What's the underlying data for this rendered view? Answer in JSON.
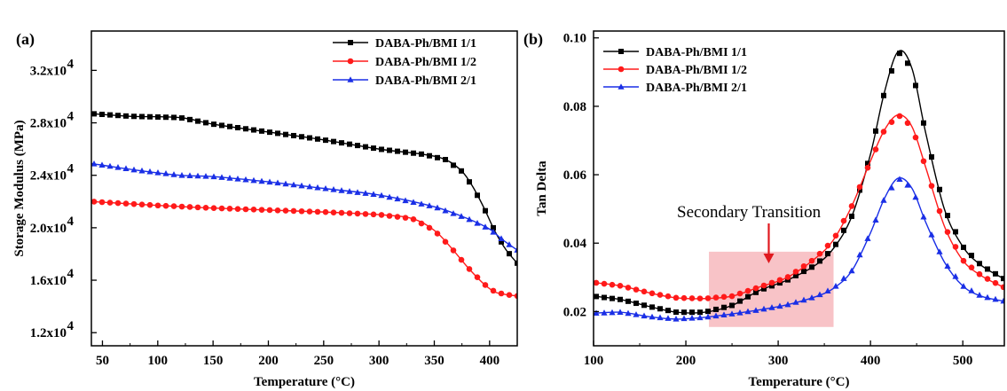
{
  "colors": {
    "series_1_1": "#000000",
    "series_1_2": "#ff1a1a",
    "series_2_1": "#1a2fe6",
    "highlight": "#f7b9bd",
    "arrow": "#e0191f"
  },
  "chart_data": [
    {
      "type": "line",
      "panel_label": "(a)",
      "xlabel": "Temperature (°C)",
      "ylabel": "Storage Modulus (MPa)",
      "xlim": [
        40,
        425
      ],
      "ylim": [
        11000,
        35000
      ],
      "x_ticks": [
        50,
        100,
        150,
        200,
        250,
        300,
        350,
        400
      ],
      "y_ticks": [
        12000,
        16000,
        20000,
        24000,
        28000,
        32000
      ],
      "y_tick_labels": [
        {
          "base": "1.2x10",
          "exp": "4"
        },
        {
          "base": "1.6x10",
          "exp": "4"
        },
        {
          "base": "2.0x10",
          "exp": "4"
        },
        {
          "base": "2.4x10",
          "exp": "4"
        },
        {
          "base": "2.8x10",
          "exp": "4"
        },
        {
          "base": "3.2x10",
          "exp": "4"
        }
      ],
      "legend_position": "top-right",
      "series": [
        {
          "name": "DABA-Ph/BMI 1/1",
          "marker": "square",
          "color_key": "series_1_1",
          "x": [
            40,
            75,
            120,
            150,
            200,
            250,
            300,
            340,
            360,
            375,
            385,
            395,
            405,
            415,
            425
          ],
          "y": [
            28700,
            28500,
            28400,
            27900,
            27300,
            26700,
            26000,
            25600,
            25200,
            24300,
            23100,
            21500,
            19700,
            18300,
            17300
          ]
        },
        {
          "name": "DABA-Ph/BMI 1/2",
          "marker": "circle",
          "color_key": "series_1_2",
          "x": [
            40,
            100,
            150,
            200,
            250,
            300,
            330,
            350,
            365,
            380,
            395,
            405,
            415,
            425
          ],
          "y": [
            22000,
            21700,
            21500,
            21350,
            21200,
            21000,
            20700,
            19800,
            18500,
            17000,
            15700,
            15100,
            14900,
            14800
          ]
        },
        {
          "name": "DABA-Ph/BMI 2/1",
          "marker": "triangle",
          "color_key": "series_2_1",
          "x": [
            40,
            80,
            120,
            150,
            200,
            250,
            300,
            350,
            380,
            400,
            410,
            418,
            425
          ],
          "y": [
            24900,
            24400,
            24000,
            23900,
            23500,
            23000,
            22500,
            21600,
            20700,
            19900,
            19200,
            18700,
            18300
          ]
        }
      ]
    },
    {
      "type": "line",
      "panel_label": "(b)",
      "xlabel": "Temperature (°C)",
      "ylabel": "Tan Delta",
      "xlim": [
        100,
        545
      ],
      "ylim": [
        0.01,
        0.102
      ],
      "x_ticks": [
        100,
        200,
        300,
        400,
        500
      ],
      "y_ticks": [
        0.02,
        0.04,
        0.06,
        0.08,
        0.1
      ],
      "y_tick_labels": [
        "0.02",
        "0.04",
        "0.06",
        "0.08",
        "0.10"
      ],
      "legend_position": "top-left",
      "annotation": {
        "text": "Secondary Transition",
        "arrow_to": [
          285,
          0.029
        ],
        "region_x": [
          225,
          360
        ],
        "region_y": [
          0.0155,
          0.0375
        ]
      },
      "series": [
        {
          "name": "DABA-Ph/BMI 1/1",
          "marker": "square",
          "color_key": "series_1_1",
          "x": [
            100,
            130,
            160,
            190,
            220,
            250,
            280,
            310,
            340,
            360,
            380,
            400,
            415,
            430,
            445,
            460,
            480,
            500,
            520,
            545
          ],
          "y": [
            0.0245,
            0.0235,
            0.0215,
            0.0198,
            0.0198,
            0.0218,
            0.0262,
            0.0292,
            0.0335,
            0.0385,
            0.048,
            0.066,
            0.084,
            0.096,
            0.091,
            0.072,
            0.05,
            0.039,
            0.0335,
            0.0295
          ]
        },
        {
          "name": "DABA-Ph/BMI 1/2",
          "marker": "circle",
          "color_key": "series_1_2",
          "x": [
            100,
            130,
            160,
            190,
            220,
            250,
            280,
            310,
            340,
            360,
            380,
            400,
            415,
            430,
            445,
            460,
            480,
            500,
            520,
            545
          ],
          "y": [
            0.0285,
            0.0275,
            0.0255,
            0.024,
            0.0238,
            0.0245,
            0.0272,
            0.03,
            0.0355,
            0.041,
            0.051,
            0.064,
            0.073,
            0.0775,
            0.074,
            0.062,
            0.045,
            0.035,
            0.0305,
            0.027
          ]
        },
        {
          "name": "DABA-Ph/BMI 2/1",
          "marker": "triangle",
          "color_key": "series_2_1",
          "x": [
            100,
            130,
            160,
            190,
            220,
            250,
            280,
            310,
            340,
            360,
            380,
            400,
            415,
            430,
            445,
            460,
            480,
            500,
            520,
            545
          ],
          "y": [
            0.0195,
            0.0198,
            0.0185,
            0.0178,
            0.0183,
            0.0193,
            0.0205,
            0.022,
            0.0243,
            0.0268,
            0.032,
            0.043,
            0.053,
            0.059,
            0.056,
            0.046,
            0.0345,
            0.0275,
            0.0245,
            0.023
          ]
        }
      ]
    }
  ]
}
